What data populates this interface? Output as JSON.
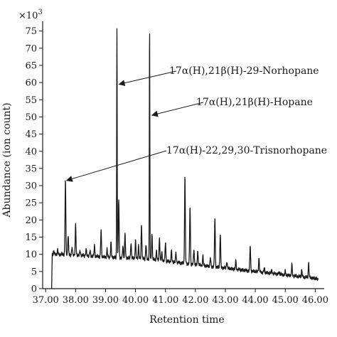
{
  "chart_data": {
    "type": "line",
    "title": "",
    "xlabel": "Retention time",
    "ylabel": "Abundance (ion count)",
    "y_multiplier_label": "×10",
    "y_multiplier_exponent": "3",
    "xlim": [
      36.9,
      46.3
    ],
    "ylim": [
      0,
      77
    ],
    "x_ticks": [
      "37.00",
      "38.00",
      "39.00",
      "40.00",
      "41.00",
      "42.00",
      "43.00",
      "44.00",
      "45.00",
      "46.00"
    ],
    "y_ticks": [
      "0",
      "5",
      "10",
      "15",
      "20",
      "25",
      "30",
      "35",
      "40",
      "45",
      "50",
      "55",
      "60",
      "65",
      "70",
      "75"
    ],
    "grid": false,
    "baseline": [
      [
        37.2,
        0
      ],
      [
        37.22,
        10.0
      ],
      [
        37.5,
        10.0
      ],
      [
        38.0,
        9.8
      ],
      [
        38.5,
        9.5
      ],
      [
        39.0,
        9.2
      ],
      [
        39.5,
        9.0
      ],
      [
        40.0,
        8.8
      ],
      [
        40.5,
        8.5
      ],
      [
        41.0,
        8.0
      ],
      [
        41.5,
        7.5
      ],
      [
        42.0,
        7.0
      ],
      [
        42.5,
        6.5
      ],
      [
        43.0,
        6.0
      ],
      [
        43.5,
        5.5
      ],
      [
        44.0,
        5.0
      ],
      [
        44.5,
        4.5
      ],
      [
        45.0,
        4.0
      ],
      [
        45.5,
        3.5
      ],
      [
        46.0,
        3.0
      ],
      [
        46.1,
        2.6
      ]
    ],
    "peaks": [
      {
        "x": 37.27,
        "y": 11.0
      },
      {
        "x": 37.4,
        "y": 11.2
      },
      {
        "x": 37.66,
        "y": 31.5
      },
      {
        "x": 37.75,
        "y": 15.5
      },
      {
        "x": 37.88,
        "y": 12.0
      },
      {
        "x": 38.0,
        "y": 18.5
      },
      {
        "x": 38.15,
        "y": 11.0
      },
      {
        "x": 38.35,
        "y": 11.5
      },
      {
        "x": 38.48,
        "y": 11.0
      },
      {
        "x": 38.63,
        "y": 12.5
      },
      {
        "x": 38.85,
        "y": 17.0
      },
      {
        "x": 39.05,
        "y": 11.5
      },
      {
        "x": 39.18,
        "y": 13.5
      },
      {
        "x": 39.38,
        "y": 76.0
      },
      {
        "x": 39.44,
        "y": 26.0
      },
      {
        "x": 39.58,
        "y": 12.5
      },
      {
        "x": 39.65,
        "y": 16.0
      },
      {
        "x": 39.85,
        "y": 13.5
      },
      {
        "x": 40.0,
        "y": 14.0
      },
      {
        "x": 40.1,
        "y": 12.5
      },
      {
        "x": 40.2,
        "y": 18.5
      },
      {
        "x": 40.35,
        "y": 13.0
      },
      {
        "x": 40.47,
        "y": 76.0
      },
      {
        "x": 40.55,
        "y": 16.0
      },
      {
        "x": 40.7,
        "y": 11.0
      },
      {
        "x": 40.8,
        "y": 15.0
      },
      {
        "x": 40.88,
        "y": 10.5
      },
      {
        "x": 41.0,
        "y": 13.5
      },
      {
        "x": 41.2,
        "y": 11.0
      },
      {
        "x": 41.35,
        "y": 10.5
      },
      {
        "x": 41.65,
        "y": 32.5
      },
      {
        "x": 41.82,
        "y": 24.0
      },
      {
        "x": 41.95,
        "y": 11.5
      },
      {
        "x": 42.08,
        "y": 11.0
      },
      {
        "x": 42.25,
        "y": 9.5
      },
      {
        "x": 42.5,
        "y": 9.0
      },
      {
        "x": 42.65,
        "y": 20.5
      },
      {
        "x": 42.83,
        "y": 16.0
      },
      {
        "x": 43.05,
        "y": 8.0
      },
      {
        "x": 43.35,
        "y": 8.0
      },
      {
        "x": 43.83,
        "y": 12.5
      },
      {
        "x": 44.12,
        "y": 9.0
      },
      {
        "x": 44.3,
        "y": 6.0
      },
      {
        "x": 44.55,
        "y": 5.5
      },
      {
        "x": 44.8,
        "y": 5.0
      },
      {
        "x": 45.0,
        "y": 5.0
      },
      {
        "x": 45.22,
        "y": 7.0
      },
      {
        "x": 45.55,
        "y": 5.5
      },
      {
        "x": 45.78,
        "y": 7.5
      }
    ],
    "annotations": [
      {
        "label": "17α(H),21β(H)-29-Norhopane",
        "target": [
          39.45,
          59.5
        ]
      },
      {
        "label": "17α(H),21β(H)-Hopane",
        "target": [
          40.55,
          50.5
        ]
      },
      {
        "label": "17α(H)-22,29,30-Trisnorhopane",
        "target": [
          37.7,
          31.5
        ]
      }
    ],
    "colors": {
      "line": "#1a1a1a",
      "axis": "#1a1a1a"
    }
  }
}
